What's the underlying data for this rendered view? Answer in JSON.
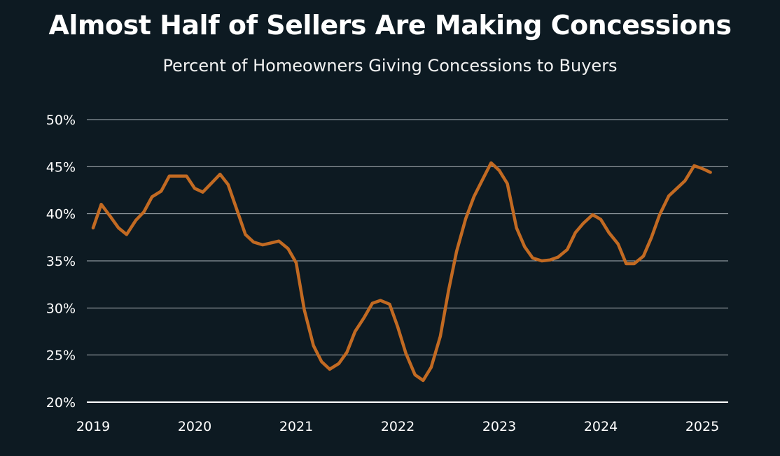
{
  "title": "Almost Half of Sellers Are Making Concessions",
  "subtitle": "Percent of Homeowners Giving Concessions to Buyers",
  "colors": {
    "background": "#0d1a22",
    "line": "#c26a22",
    "grid": "#c9d0d4",
    "text": "#ffffff"
  },
  "chart_data": {
    "type": "line",
    "title": "Almost Half of Sellers Are Making Concessions",
    "subtitle": "Percent of Homeowners Giving Concessions to Buyers",
    "xlabel": "",
    "ylabel": "",
    "ylim": [
      20,
      50
    ],
    "y_ticks": [
      20,
      25,
      30,
      35,
      40,
      45,
      50
    ],
    "y_tick_labels": [
      "20%",
      "25%",
      "30%",
      "35%",
      "40%",
      "45%",
      "50%"
    ],
    "x_ticks": [
      2019,
      2020,
      2021,
      2022,
      2023,
      2024,
      2025
    ],
    "x_tick_labels": [
      "2019",
      "2020",
      "2021",
      "2022",
      "2023",
      "2024",
      "2025"
    ],
    "xlim": [
      2019,
      2025.3
    ],
    "grid": true,
    "series": [
      {
        "values": [
          [
            2019.0,
            38.5
          ],
          [
            2019.08,
            41.0
          ],
          [
            2019.17,
            39.7
          ],
          [
            2019.25,
            38.5
          ],
          [
            2019.33,
            37.8
          ],
          [
            2019.42,
            39.3
          ],
          [
            2019.5,
            40.2
          ],
          [
            2019.58,
            41.8
          ],
          [
            2019.67,
            42.4
          ],
          [
            2019.75,
            44.0
          ],
          [
            2019.83,
            44.0
          ],
          [
            2019.92,
            44.0
          ],
          [
            2020.0,
            42.7
          ],
          [
            2020.08,
            42.3
          ],
          [
            2020.17,
            43.3
          ],
          [
            2020.25,
            44.2
          ],
          [
            2020.33,
            43.1
          ],
          [
            2020.42,
            40.3
          ],
          [
            2020.5,
            37.8
          ],
          [
            2020.58,
            37.0
          ],
          [
            2020.67,
            36.7
          ],
          [
            2020.75,
            36.9
          ],
          [
            2020.83,
            37.1
          ],
          [
            2020.92,
            36.3
          ],
          [
            2021.0,
            34.8
          ],
          [
            2021.08,
            29.8
          ],
          [
            2021.17,
            26.0
          ],
          [
            2021.25,
            24.3
          ],
          [
            2021.33,
            23.5
          ],
          [
            2021.42,
            24.1
          ],
          [
            2021.5,
            25.3
          ],
          [
            2021.58,
            27.5
          ],
          [
            2021.67,
            29.0
          ],
          [
            2021.75,
            30.5
          ],
          [
            2021.83,
            30.8
          ],
          [
            2021.92,
            30.4
          ],
          [
            2022.0,
            28.0
          ],
          [
            2022.08,
            25.2
          ],
          [
            2022.17,
            22.9
          ],
          [
            2022.25,
            22.3
          ],
          [
            2022.33,
            23.7
          ],
          [
            2022.42,
            27.0
          ],
          [
            2022.5,
            31.8
          ],
          [
            2022.58,
            36.0
          ],
          [
            2022.67,
            39.5
          ],
          [
            2022.75,
            41.8
          ],
          [
            2022.83,
            43.5
          ],
          [
            2022.92,
            45.4
          ],
          [
            2023.0,
            44.6
          ],
          [
            2023.08,
            43.2
          ],
          [
            2023.17,
            38.5
          ],
          [
            2023.25,
            36.5
          ],
          [
            2023.33,
            35.3
          ],
          [
            2023.42,
            35.0
          ],
          [
            2023.5,
            35.1
          ],
          [
            2023.58,
            35.4
          ],
          [
            2023.67,
            36.2
          ],
          [
            2023.75,
            38.0
          ],
          [
            2023.83,
            39.0
          ],
          [
            2023.92,
            39.9
          ],
          [
            2024.0,
            39.4
          ],
          [
            2024.08,
            38.0
          ],
          [
            2024.17,
            36.8
          ],
          [
            2024.25,
            34.7
          ],
          [
            2024.33,
            34.7
          ],
          [
            2024.42,
            35.5
          ],
          [
            2024.5,
            37.5
          ],
          [
            2024.58,
            39.9
          ],
          [
            2024.67,
            41.9
          ],
          [
            2024.75,
            42.7
          ],
          [
            2024.83,
            43.5
          ],
          [
            2024.92,
            45.1
          ],
          [
            2025.0,
            44.8
          ],
          [
            2025.08,
            44.4
          ]
        ]
      }
    ]
  }
}
